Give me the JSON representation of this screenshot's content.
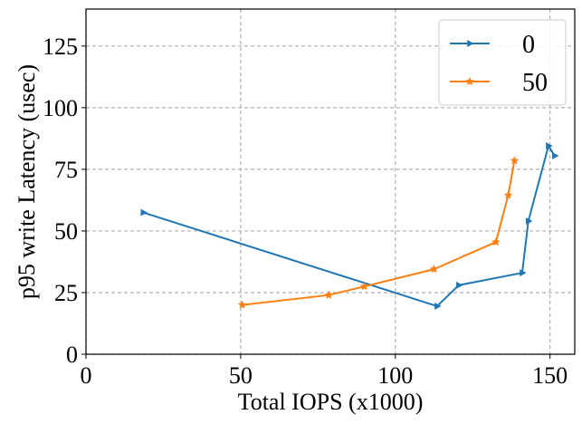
{
  "chart_data": {
    "type": "line",
    "title": "",
    "xlabel": "Total IOPS (x1000)",
    "ylabel": "p95 write Latency (usec)",
    "xlim": [
      0,
      158
    ],
    "ylim": [
      0,
      140
    ],
    "xticks": [
      0,
      50,
      100,
      150
    ],
    "yticks": [
      0,
      25,
      50,
      75,
      100,
      125
    ],
    "grid": true,
    "grid_style": "dashed",
    "legend_position": "top-right",
    "series": [
      {
        "name": "0",
        "color": "#1f77b4",
        "marker": "triangle-right",
        "points": [
          [
            18.5,
            57.5
          ],
          [
            113.5,
            19.5
          ],
          [
            120.5,
            28.0
          ],
          [
            141.0,
            33.0
          ],
          [
            143.0,
            54.0
          ],
          [
            149.5,
            84.5
          ],
          [
            151.5,
            80.5
          ]
        ]
      },
      {
        "name": "50",
        "color": "#ff7f0e",
        "marker": "star",
        "points": [
          [
            50.5,
            20.0
          ],
          [
            78.5,
            24.0
          ],
          [
            90.0,
            27.5
          ],
          [
            112.5,
            34.5
          ],
          [
            132.5,
            45.5
          ],
          [
            136.5,
            64.5
          ],
          [
            138.5,
            78.5
          ]
        ]
      }
    ]
  }
}
